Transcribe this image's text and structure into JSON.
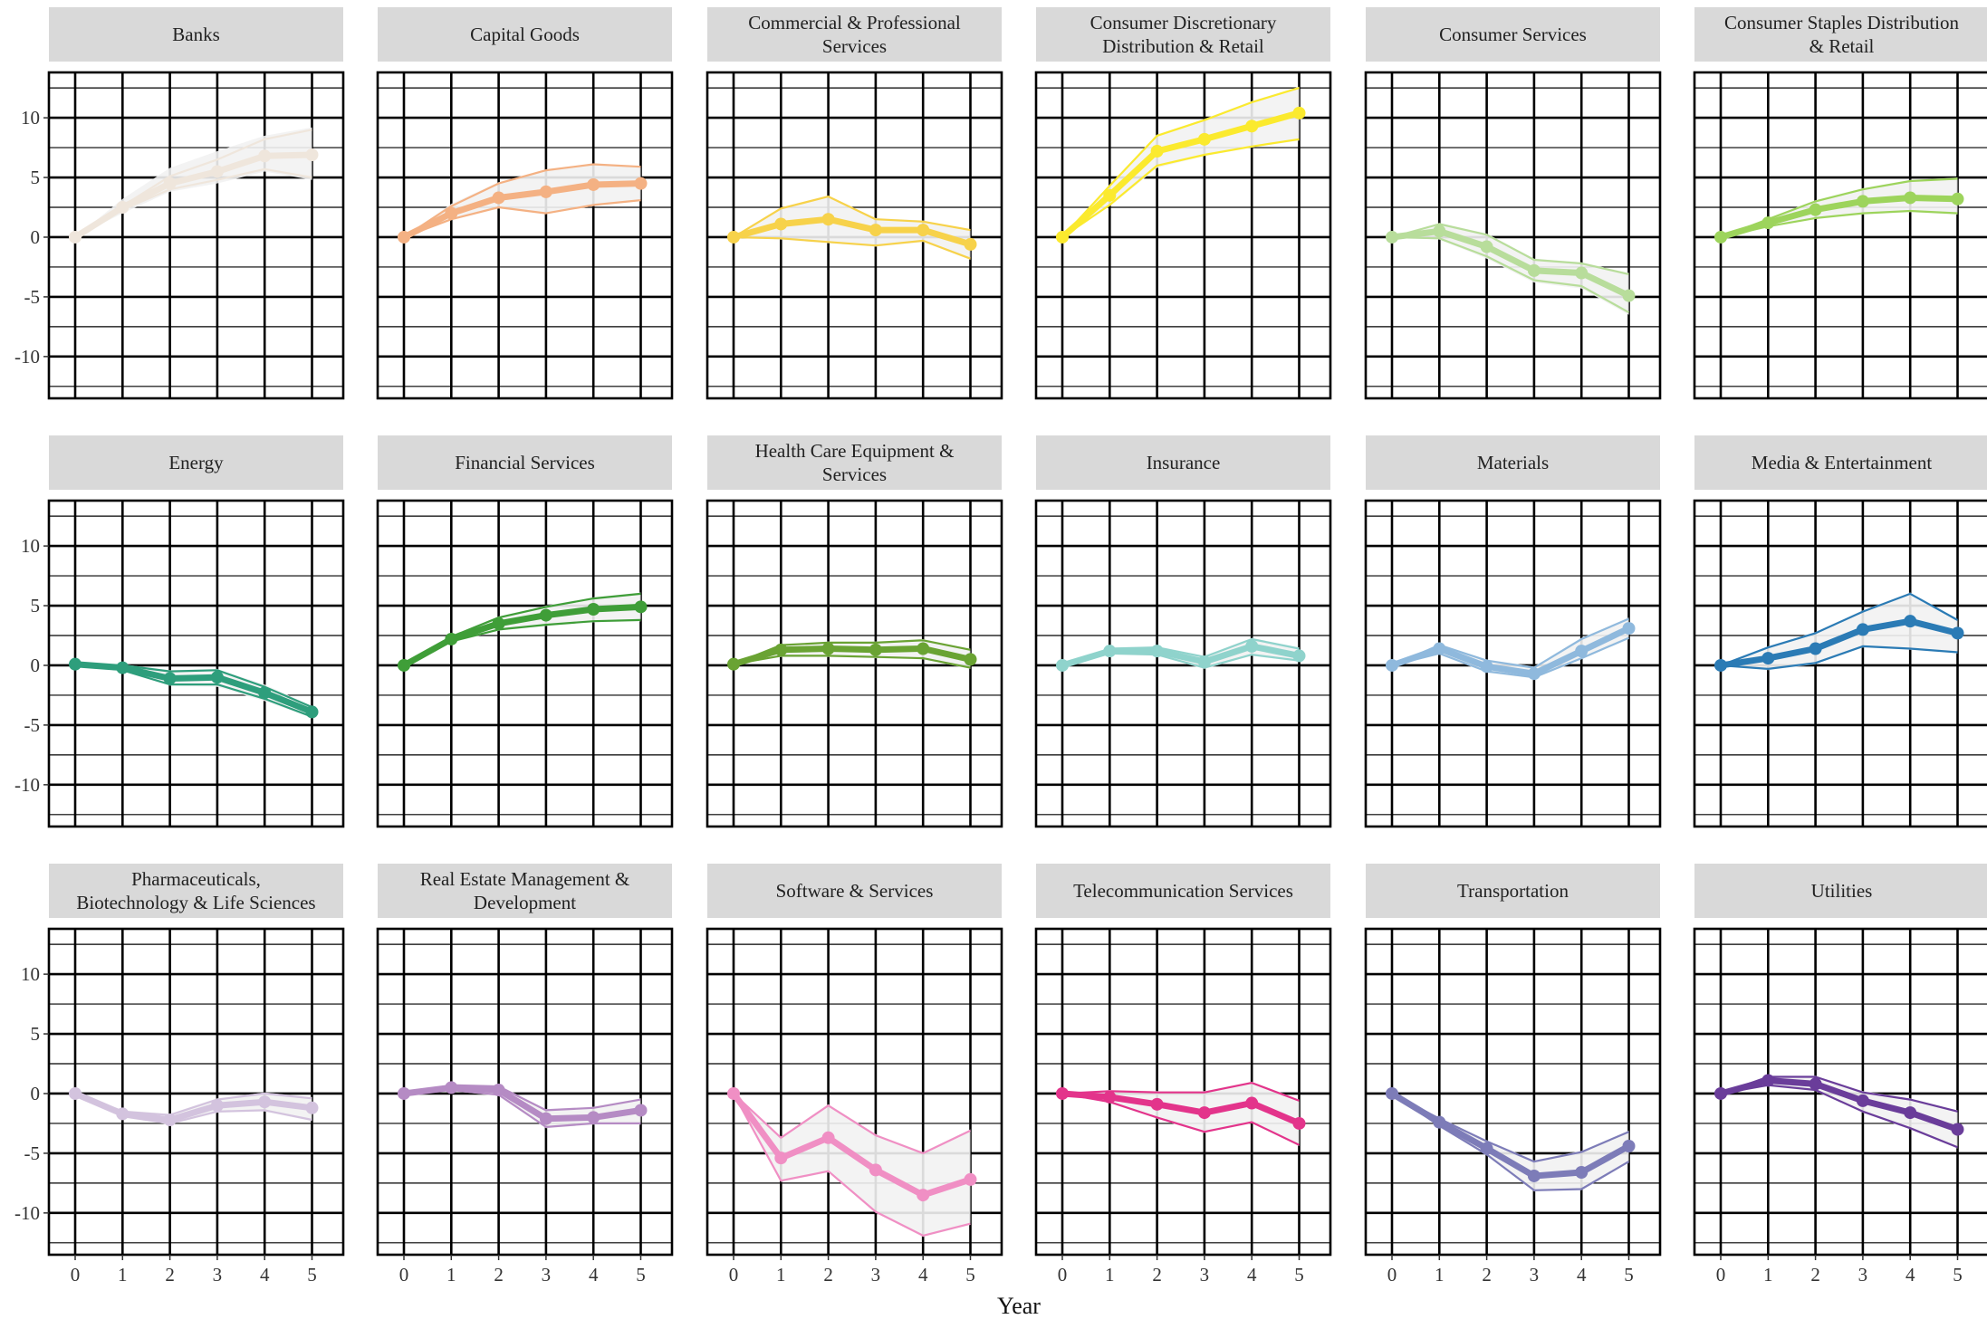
{
  "chart_data": {
    "type": "line",
    "facet_layout": {
      "rows": 3,
      "cols": 6
    },
    "xlabel": "Year",
    "ylabel": "",
    "x": [
      0,
      1,
      2,
      3,
      4,
      5
    ],
    "x_ticks": [
      "0",
      "1",
      "2",
      "3",
      "4",
      "5"
    ],
    "ylim": [
      -13.5,
      13.8
    ],
    "y_ticks": [
      -10,
      -5,
      0,
      5,
      10
    ],
    "y_tick_labels": [
      "-10",
      "-5",
      "0",
      "5",
      "10"
    ],
    "y_gridlines": [
      -12.5,
      -10,
      -7.5,
      -5,
      -2.5,
      0,
      2.5,
      5,
      7.5,
      10,
      12.5
    ],
    "grid": true,
    "legend": "none",
    "band_fill": "#f2f2f2",
    "strip_fill": "#d9d9d9",
    "facets": [
      {
        "title": [
          "Banks"
        ],
        "color": "#efe6dc",
        "values": [
          0,
          2.5,
          4.5,
          5.5,
          6.8,
          6.9
        ],
        "upper": [
          0,
          3.2,
          5.8,
          7.2,
          8.5,
          9.2
        ],
        "lower": [
          0,
          2.0,
          3.8,
          4.5,
          5.5,
          4.8
        ],
        "thin": [
          [
            0,
            2.6,
            5.1,
            6.5,
            8.2,
            9.0
          ],
          [
            0,
            2.3,
            4.0,
            4.8,
            5.7,
            5.0
          ]
        ]
      },
      {
        "title": [
          "Capital Goods"
        ],
        "color": "#f4b183",
        "values": [
          0,
          2.0,
          3.3,
          3.8,
          4.4,
          4.5
        ],
        "upper": [
          0,
          2.8,
          4.6,
          5.6,
          6.1,
          5.9
        ],
        "lower": [
          0,
          1.5,
          2.4,
          2.0,
          2.6,
          3.1
        ],
        "thin": [
          [
            0,
            2.6,
            4.5,
            5.6,
            6.1,
            5.9
          ],
          [
            0,
            1.5,
            2.5,
            2.0,
            2.7,
            3.1
          ]
        ]
      },
      {
        "title": [
          "Commercial & Professional",
          "Services"
        ],
        "color": "#f7d24a",
        "values": [
          0,
          1.1,
          1.5,
          0.6,
          0.6,
          -0.6
        ],
        "upper": [
          0,
          2.4,
          3.4,
          1.6,
          1.4,
          0.6
        ],
        "lower": [
          0,
          -0.2,
          -0.5,
          -0.8,
          -0.4,
          -1.9
        ],
        "thin": [
          [
            0,
            2.4,
            3.4,
            1.5,
            1.3,
            0.6
          ],
          [
            0,
            -0.1,
            -0.4,
            -0.7,
            -0.3,
            -1.8
          ]
        ]
      },
      {
        "title": [
          "Consumer Discretionary",
          "Distribution & Retail"
        ],
        "color": "#fbea2e",
        "values": [
          0,
          3.5,
          7.2,
          8.2,
          9.3,
          10.4
        ],
        "upper": [
          0,
          4.4,
          8.6,
          9.9,
          11.4,
          12.6
        ],
        "lower": [
          0,
          2.6,
          5.8,
          6.8,
          7.5,
          8.1
        ],
        "thin": [
          [
            0,
            4.3,
            8.5,
            9.8,
            11.3,
            12.5
          ],
          [
            0,
            2.7,
            6.0,
            6.9,
            7.6,
            8.2
          ]
        ]
      },
      {
        "title": [
          "Consumer Services"
        ],
        "color": "#b8dd9b",
        "values": [
          0,
          0.5,
          -0.8,
          -2.8,
          -3.0,
          -4.9
        ],
        "upper": [
          0,
          1.2,
          0.3,
          -1.8,
          -2.1,
          -3.0
        ],
        "lower": [
          0,
          -0.2,
          -1.8,
          -3.8,
          -4.3,
          -6.5
        ],
        "thin": [
          [
            0,
            1.1,
            0.2,
            -1.9,
            -2.2,
            -3.1
          ],
          [
            0,
            -0.1,
            -1.6,
            -3.6,
            -4.1,
            -6.3
          ]
        ]
      },
      {
        "title": [
          "Consumer Staples Distribution",
          "& Retail"
        ],
        "color": "#9dd45c",
        "values": [
          0,
          1.2,
          2.3,
          3.0,
          3.3,
          3.2
        ],
        "upper": [
          0,
          1.6,
          3.1,
          4.1,
          4.8,
          5.0
        ],
        "lower": [
          0,
          0.9,
          1.6,
          1.9,
          2.1,
          1.9
        ],
        "thin": [
          [
            0,
            1.5,
            3.0,
            4.0,
            4.7,
            4.9
          ],
          [
            0,
            0.9,
            1.6,
            2.0,
            2.2,
            2.0
          ]
        ]
      },
      {
        "title": [
          "Energy"
        ],
        "color": "#2e9e7c",
        "values": [
          0.1,
          -0.2,
          -1.1,
          -1.0,
          -2.3,
          -3.9
        ],
        "upper": [
          0.1,
          0.1,
          -0.4,
          -0.3,
          -1.6,
          -3.4
        ],
        "lower": [
          0.1,
          -0.5,
          -1.7,
          -1.8,
          -3.0,
          -4.4
        ],
        "thin": [
          [
            0.1,
            0.0,
            -0.5,
            -0.4,
            -1.8,
            -3.5
          ],
          [
            0.1,
            -0.4,
            -1.6,
            -1.6,
            -2.8,
            -4.3
          ]
        ]
      },
      {
        "title": [
          "Financial Services"
        ],
        "color": "#3f9e38",
        "values": [
          0,
          2.2,
          3.5,
          4.2,
          4.7,
          4.9
        ],
        "upper": [
          0,
          2.5,
          4.1,
          5.0,
          5.7,
          6.1
        ],
        "lower": [
          0,
          1.9,
          2.9,
          3.3,
          3.6,
          3.7
        ],
        "thin": [
          [
            0,
            2.4,
            4.0,
            4.9,
            5.6,
            6.0
          ],
          [
            0,
            2.0,
            3.0,
            3.4,
            3.7,
            3.8
          ]
        ]
      },
      {
        "title": [
          "Health Care Equipment &",
          "Services"
        ],
        "color": "#6aa333",
        "values": [
          0.1,
          1.3,
          1.4,
          1.3,
          1.4,
          0.5
        ],
        "upper": [
          0.1,
          1.8,
          2.0,
          2.0,
          2.2,
          1.4
        ],
        "lower": [
          0.1,
          0.7,
          0.7,
          0.6,
          0.5,
          -0.3
        ],
        "thin": [
          [
            0.1,
            1.7,
            1.9,
            1.9,
            2.1,
            1.3
          ],
          [
            0.1,
            0.8,
            0.8,
            0.7,
            0.6,
            -0.2
          ]
        ]
      },
      {
        "title": [
          "Insurance"
        ],
        "color": "#8fd3cc",
        "values": [
          0,
          1.2,
          1.2,
          0.3,
          1.6,
          0.8
        ],
        "upper": [
          0,
          1.5,
          1.6,
          0.8,
          2.3,
          1.5
        ],
        "lower": [
          0,
          0.9,
          0.8,
          -0.3,
          0.8,
          0.3
        ],
        "thin": [
          [
            0,
            1.4,
            1.5,
            0.7,
            2.2,
            1.4
          ],
          [
            0,
            1.0,
            0.9,
            -0.2,
            0.9,
            0.4
          ]
        ]
      },
      {
        "title": [
          "Materials"
        ],
        "color": "#8fb9dd",
        "values": [
          0,
          1.4,
          -0.1,
          -0.7,
          1.2,
          3.1
        ],
        "upper": [
          0,
          1.8,
          0.5,
          -0.1,
          2.3,
          4.0
        ],
        "lower": [
          0,
          0.9,
          -0.6,
          -1.1,
          0.5,
          2.2
        ],
        "thin": [
          [
            0,
            1.7,
            0.4,
            -0.2,
            2.2,
            3.9
          ],
          [
            0,
            1.0,
            -0.5,
            -1.0,
            0.6,
            2.3
          ]
        ]
      },
      {
        "title": [
          "Media & Entertainment"
        ],
        "color": "#2b7bb5",
        "values": [
          0,
          0.6,
          1.4,
          3.0,
          3.7,
          2.7
        ],
        "upper": [
          0,
          1.6,
          2.8,
          4.6,
          6.1,
          3.8
        ],
        "lower": [
          0,
          -0.4,
          0.1,
          1.5,
          1.3,
          1.0
        ],
        "thin": [
          [
            0,
            1.5,
            2.7,
            4.5,
            6.0,
            3.8
          ],
          [
            0,
            -0.3,
            0.2,
            1.6,
            1.4,
            1.1
          ]
        ]
      },
      {
        "title": [
          "Pharmaceuticals,",
          "Biotechnology & Life Sciences"
        ],
        "color": "#d3c3de",
        "values": [
          0,
          -1.7,
          -2.2,
          -1.0,
          -0.7,
          -1.2
        ],
        "upper": [
          0,
          -1.4,
          -1.7,
          -0.4,
          0.1,
          -0.3
        ],
        "lower": [
          0,
          -2.0,
          -2.6,
          -1.6,
          -1.5,
          -2.3
        ],
        "thin": [
          [
            0,
            -1.5,
            -1.8,
            -0.5,
            0.0,
            -0.4
          ],
          [
            0,
            -1.9,
            -2.5,
            -1.5,
            -1.4,
            -2.2
          ]
        ]
      },
      {
        "title": [
          "Real Estate Management &",
          "Development"
        ],
        "color": "#b58bc4",
        "values": [
          0,
          0.5,
          0.3,
          -2.1,
          -2.0,
          -1.4
        ],
        "upper": [
          0,
          0.8,
          0.7,
          -1.3,
          -1.1,
          -0.4
        ],
        "lower": [
          0,
          0.2,
          -0.2,
          -2.9,
          -2.6,
          -2.6
        ],
        "thin": [
          [
            0,
            0.7,
            0.6,
            -1.4,
            -1.2,
            -0.5
          ],
          [
            0,
            0.3,
            -0.1,
            -2.8,
            -2.5,
            -2.5
          ]
        ]
      },
      {
        "title": [
          "Software & Services"
        ],
        "color": "#f08fc4",
        "values": [
          0,
          -5.4,
          -3.7,
          -6.4,
          -8.5,
          -7.2
        ],
        "upper": [
          0,
          -3.6,
          -0.9,
          -3.4,
          -4.9,
          -3.0
        ],
        "lower": [
          0,
          -7.4,
          -6.6,
          -10.0,
          -12.0,
          -11.0
        ],
        "thin": [
          [
            0,
            -3.7,
            -1.0,
            -3.5,
            -5.0,
            -3.1
          ],
          [
            0,
            -7.3,
            -6.5,
            -9.9,
            -11.9,
            -10.9
          ]
        ]
      },
      {
        "title": [
          "Telecommunication Services"
        ],
        "color": "#e3348b",
        "values": [
          0,
          -0.3,
          -0.9,
          -1.6,
          -0.8,
          -2.5
        ],
        "upper": [
          0,
          0.3,
          0.2,
          0.2,
          1.0,
          -0.5
        ],
        "lower": [
          0,
          -0.8,
          -2.1,
          -3.3,
          -2.5,
          -4.4
        ],
        "thin": [
          [
            0,
            0.2,
            0.1,
            0.1,
            0.9,
            -0.6
          ],
          [
            0,
            -0.7,
            -2.0,
            -3.2,
            -2.4,
            -4.3
          ]
        ]
      },
      {
        "title": [
          "Transportation"
        ],
        "color": "#7d7cb8",
        "values": [
          0,
          -2.4,
          -4.6,
          -6.9,
          -6.6,
          -4.4
        ],
        "upper": [
          0,
          -2.0,
          -3.9,
          -5.6,
          -4.8,
          -3.1
        ],
        "lower": [
          0,
          -2.8,
          -5.2,
          -8.2,
          -8.1,
          -5.8
        ],
        "thin": [
          [
            0,
            -2.1,
            -4.0,
            -5.7,
            -4.9,
            -3.2
          ],
          [
            0,
            -2.7,
            -5.1,
            -8.1,
            -8.0,
            -5.7
          ]
        ]
      },
      {
        "title": [
          "Utilities"
        ],
        "color": "#6a3d9a",
        "values": [
          0,
          1.1,
          0.8,
          -0.6,
          -1.6,
          -3.0
        ],
        "upper": [
          0,
          1.5,
          1.5,
          0.2,
          -0.4,
          -1.4
        ],
        "lower": [
          0,
          0.6,
          0.2,
          -1.6,
          -3.0,
          -4.6
        ],
        "thin": [
          [
            0,
            1.4,
            1.4,
            0.1,
            -0.5,
            -1.5
          ],
          [
            0,
            0.7,
            0.3,
            -1.5,
            -2.9,
            -4.5
          ]
        ]
      }
    ]
  }
}
